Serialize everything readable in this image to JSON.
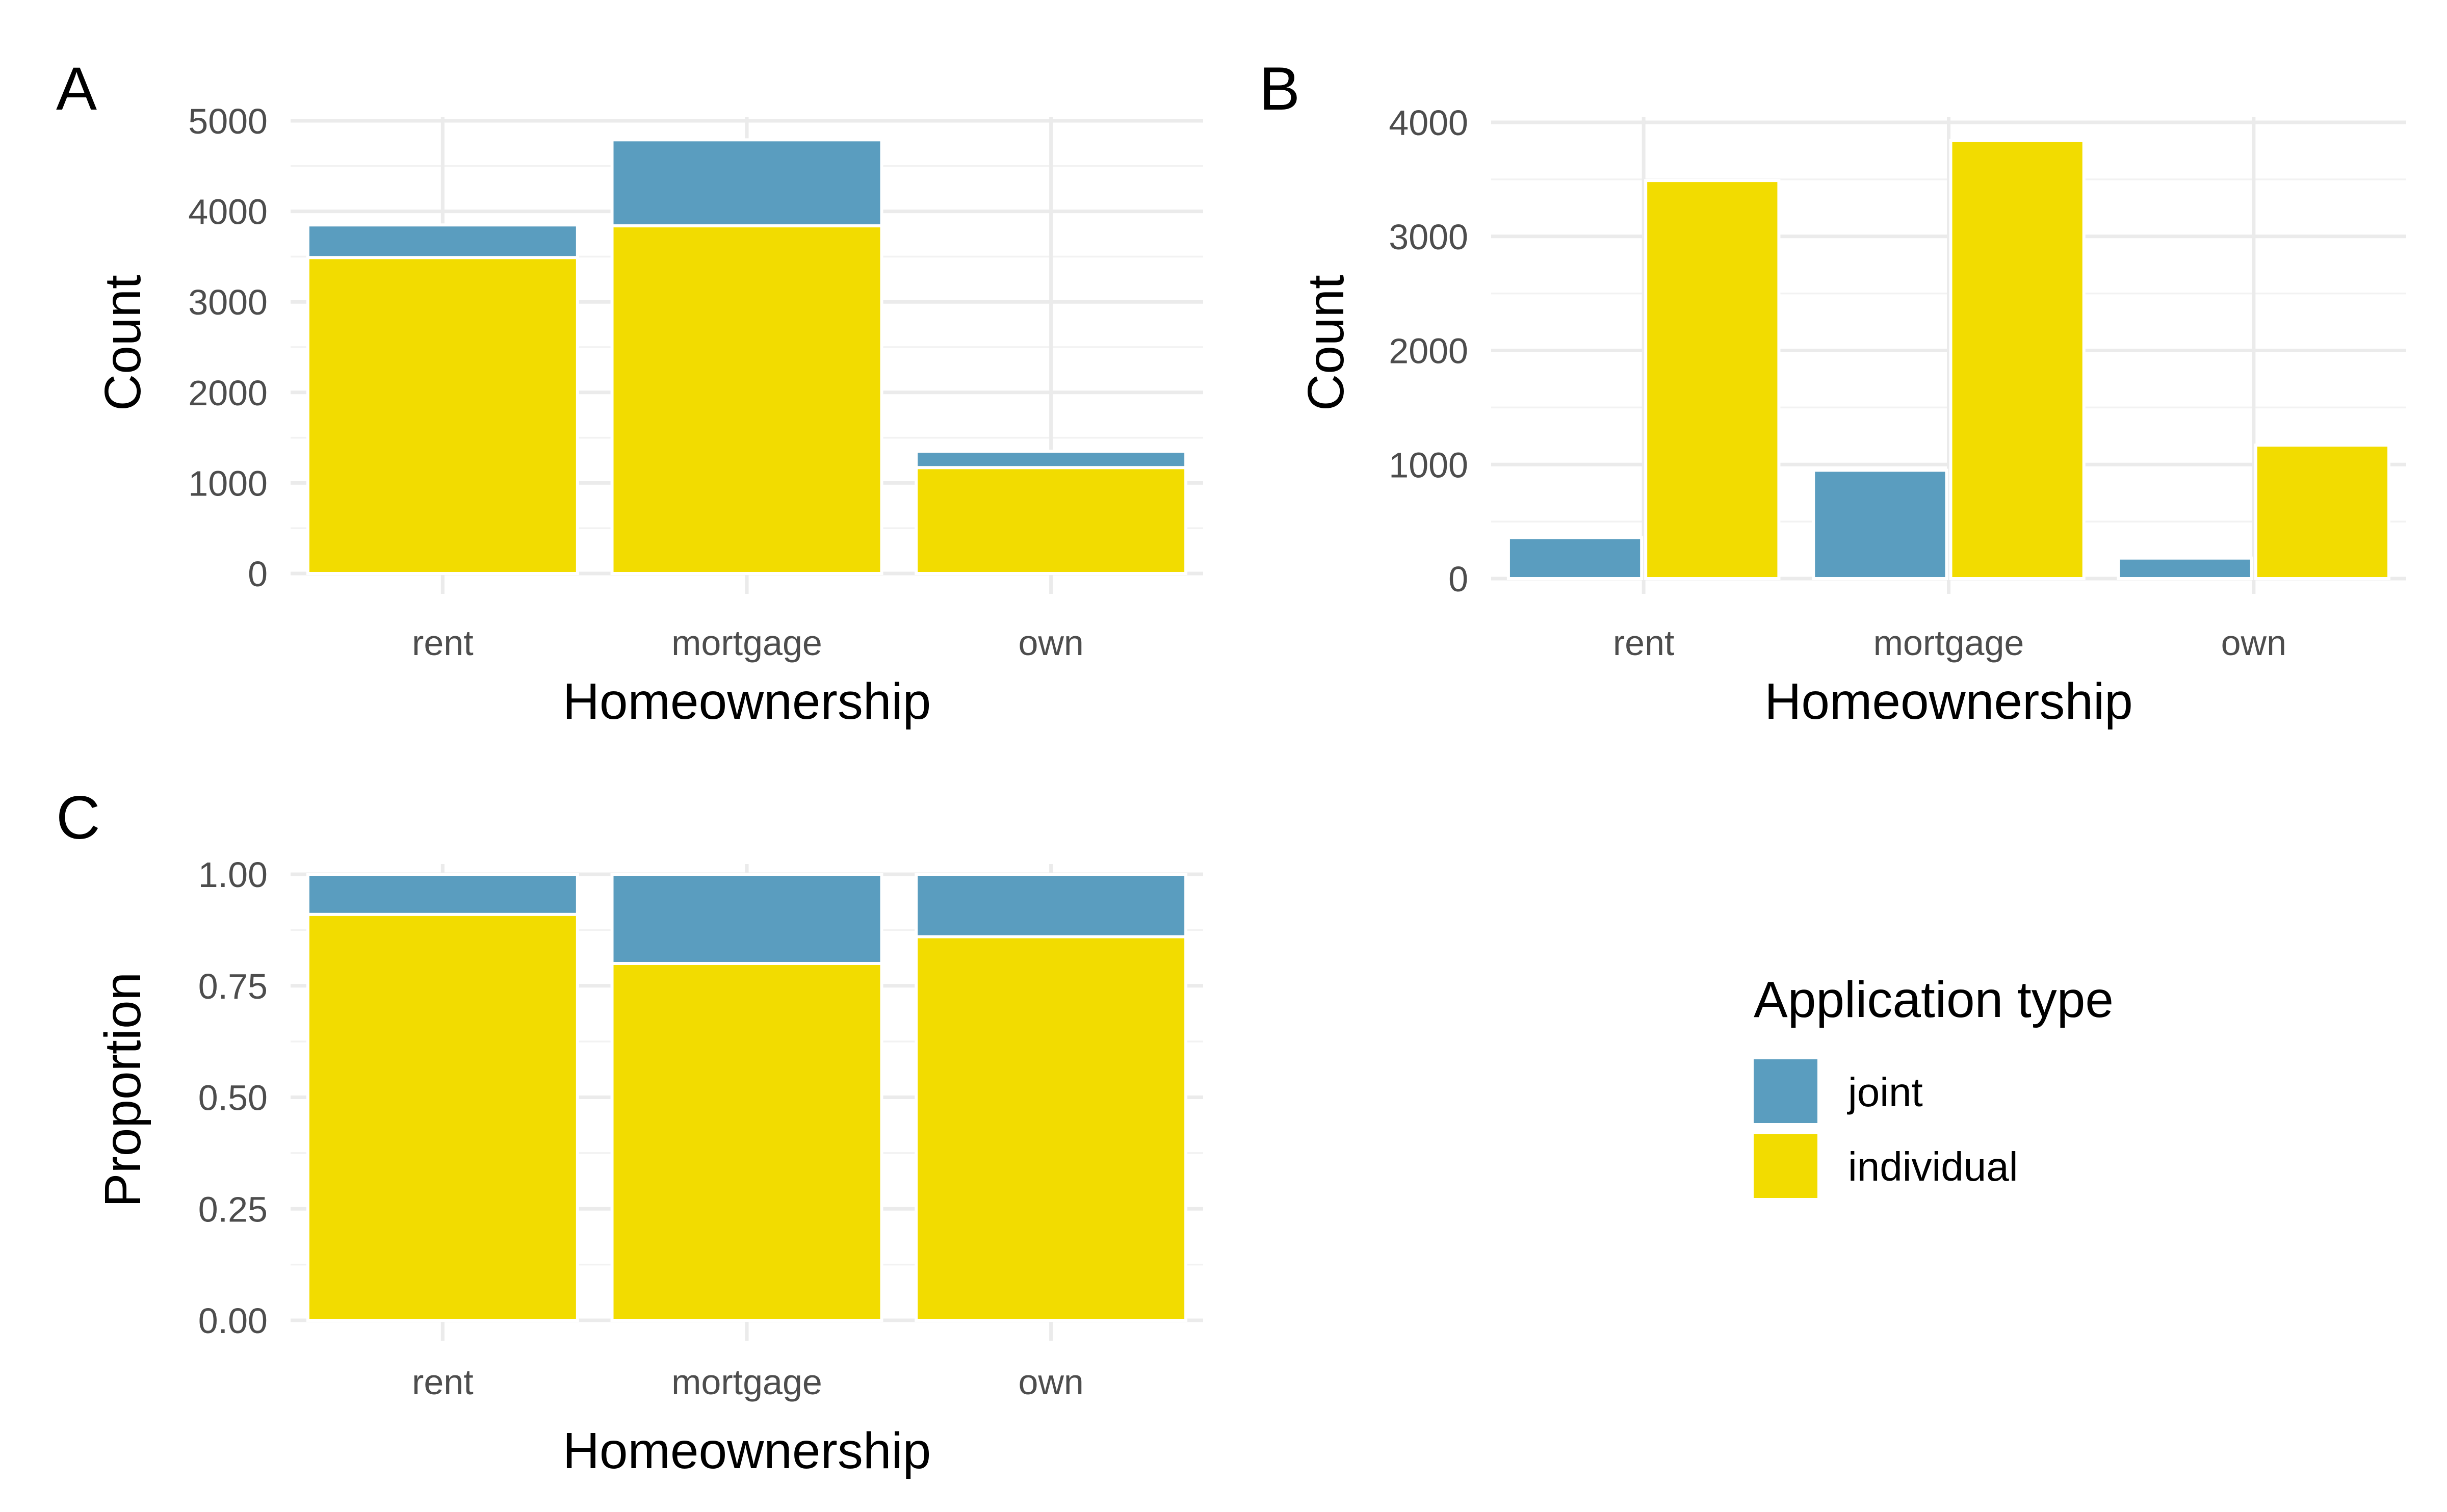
{
  "colors": {
    "joint": "#5a9dbf",
    "individual": "#f2dc00"
  },
  "legend": {
    "title": "Application type",
    "items": [
      {
        "key": "joint",
        "label": "joint"
      },
      {
        "key": "individual",
        "label": "individual"
      }
    ]
  },
  "chart_data": [
    {
      "tag": "A",
      "type": "bar",
      "mode": "stacked",
      "categories": [
        "rent",
        "mortgage",
        "own"
      ],
      "series": [
        {
          "name": "joint",
          "values": [
            360,
            950,
            180
          ]
        },
        {
          "name": "individual",
          "values": [
            3490,
            3840,
            1170
          ]
        }
      ],
      "xlabel": "Homeownership",
      "ylabel": "Count",
      "ylim": [
        0,
        5000
      ],
      "yticks": [
        "0",
        "1000",
        "2000",
        "3000",
        "4000",
        "5000"
      ],
      "grid": true
    },
    {
      "tag": "B",
      "type": "bar",
      "mode": "grouped",
      "categories": [
        "rent",
        "mortgage",
        "own"
      ],
      "series": [
        {
          "name": "joint",
          "values": [
            360,
            950,
            180
          ]
        },
        {
          "name": "individual",
          "values": [
            3490,
            3840,
            1170
          ]
        }
      ],
      "xlabel": "Homeownership",
      "ylabel": "Count",
      "ylim": [
        0,
        4000
      ],
      "yticks": [
        "0",
        "1000",
        "2000",
        "3000",
        "4000"
      ],
      "grid": true
    },
    {
      "tag": "C",
      "type": "bar",
      "mode": "stacked-proportion",
      "categories": [
        "rent",
        "mortgage",
        "own"
      ],
      "series": [
        {
          "name": "joint",
          "values": [
            0.09,
            0.2,
            0.14
          ]
        },
        {
          "name": "individual",
          "values": [
            0.91,
            0.8,
            0.86
          ]
        }
      ],
      "xlabel": "Homeownership",
      "ylabel": "Proportion",
      "ylim": [
        0,
        1
      ],
      "yticks": [
        "0.00",
        "0.25",
        "0.50",
        "0.75",
        "1.00"
      ],
      "grid": true
    }
  ]
}
